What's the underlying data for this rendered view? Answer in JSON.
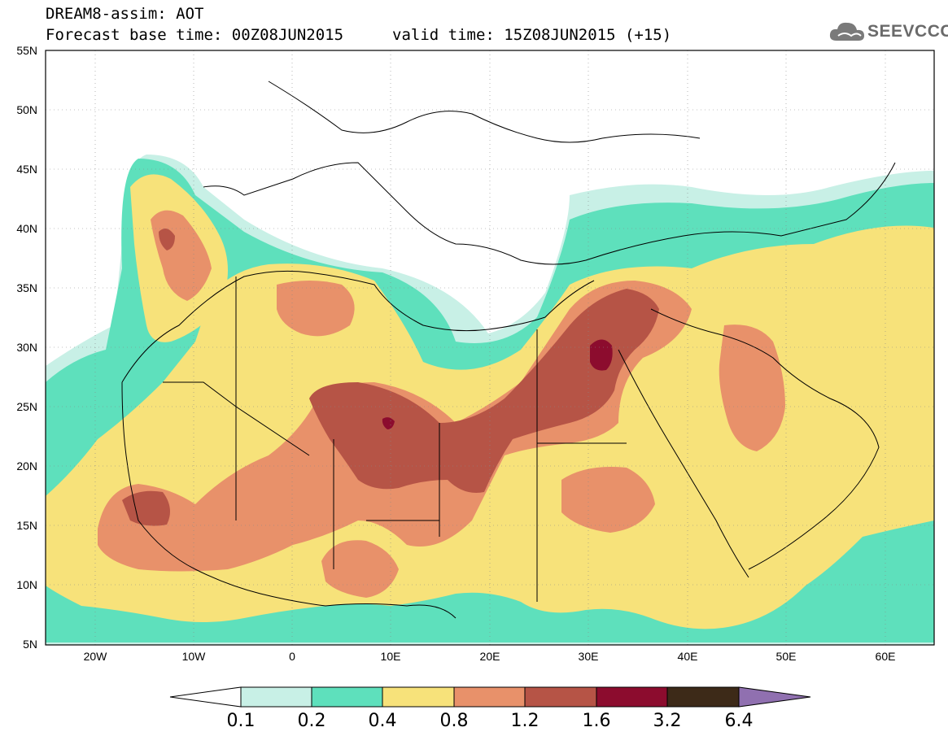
{
  "header": {
    "title": "DREAM8-assim: AOT",
    "base_label": "Forecast base time: 00Z08JUN2015",
    "valid_label": "valid time: 15Z08JUN2015 (+15)"
  },
  "logo": {
    "text": "SEEVCCC",
    "icon": "cloud-icon"
  },
  "axes": {
    "lon_ticks": [
      "20W",
      "10W",
      "0",
      "10E",
      "20E",
      "30E",
      "40E",
      "50E",
      "60E"
    ],
    "lat_ticks": [
      "55N",
      "50N",
      "45N",
      "40N",
      "35N",
      "30N",
      "25N",
      "20N",
      "15N",
      "10N",
      "5N"
    ]
  },
  "colorbar": {
    "labels": [
      "0.1",
      "0.2",
      "0.4",
      "0.8",
      "1.2",
      "1.6",
      "3.2",
      "6.4"
    ],
    "colors": [
      "#ffffff",
      "#c8f0e6",
      "#5ee0bc",
      "#f7e27a",
      "#e8916a",
      "#b65446",
      "#8c0c2e",
      "#3d2a18",
      "#9070b0"
    ]
  },
  "map_colors": {
    "land": "#ffffff",
    "border": "#000000",
    "c1": "#c8f0e6",
    "c2": "#5ee0bc",
    "c3": "#f7e27a",
    "c4": "#e8916a",
    "c5": "#b65446",
    "c6": "#8c0c2e"
  }
}
